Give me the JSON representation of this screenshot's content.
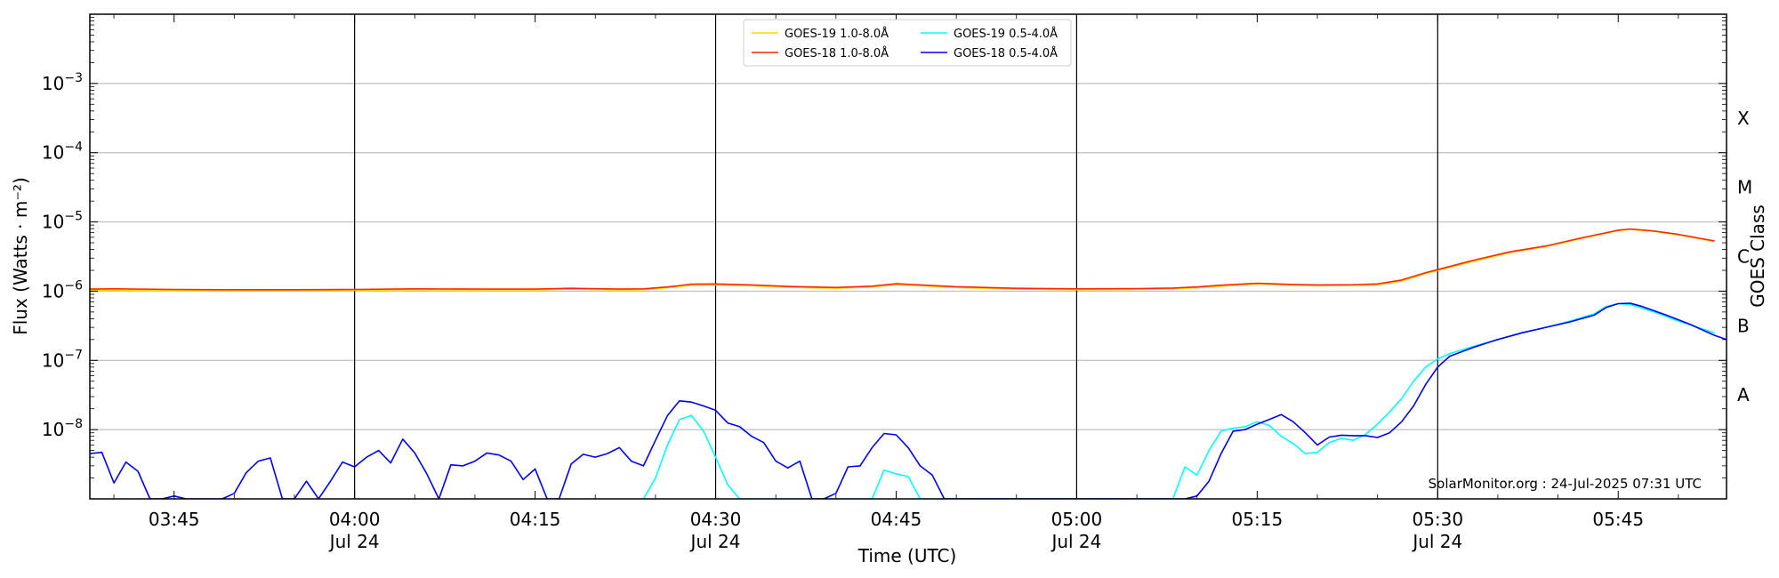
{
  "chart_data": {
    "type": "line",
    "xlabel": "Time (UTC)",
    "ylabel": "Flux (Watts · m⁻²)",
    "y2label": "GOES Class",
    "y_scale": "log",
    "ylim": [
      1e-09,
      0.01
    ],
    "xlim": [
      "03:38",
      "05:54"
    ],
    "grid": "horizontal",
    "legend_position": "top-center",
    "credit": "SolarMonitor.org : 24-Jul-2025 07:31 UTC",
    "x_ticks": [
      {
        "time": "03:45",
        "label": "03:45",
        "date": ""
      },
      {
        "time": "04:00",
        "label": "04:00",
        "date": "Jul 24"
      },
      {
        "time": "04:15",
        "label": "04:15",
        "date": ""
      },
      {
        "time": "04:30",
        "label": "04:30",
        "date": "Jul 24"
      },
      {
        "time": "04:45",
        "label": "04:45",
        "date": ""
      },
      {
        "time": "05:00",
        "label": "05:00",
        "date": "Jul 24"
      },
      {
        "time": "05:15",
        "label": "05:15",
        "date": ""
      },
      {
        "time": "05:30",
        "label": "05:30",
        "date": "Jul 24"
      },
      {
        "time": "05:45",
        "label": "05:45",
        "date": ""
      }
    ],
    "day_lines": [
      "04:00",
      "04:30",
      "05:00",
      "05:30"
    ],
    "y_ticks": [
      {
        "value": 1e-08,
        "mant": "10",
        "exp": "−8"
      },
      {
        "value": 1e-07,
        "mant": "10",
        "exp": "−7"
      },
      {
        "value": 1e-06,
        "mant": "10",
        "exp": "−6"
      },
      {
        "value": 1e-05,
        "mant": "10",
        "exp": "−5"
      },
      {
        "value": 0.0001,
        "mant": "10",
        "exp": "−4"
      },
      {
        "value": 0.001,
        "mant": "10",
        "exp": "−3"
      }
    ],
    "goes_classes": [
      {
        "label": "A",
        "value": 3.16e-08
      },
      {
        "label": "B",
        "value": 3.16e-07
      },
      {
        "label": "C",
        "value": 3.16e-06
      },
      {
        "label": "M",
        "value": 3.16e-05
      },
      {
        "label": "X",
        "value": 0.000316
      }
    ],
    "legend": [
      {
        "label": "GOES-19 1.0-8.0Å",
        "color": "#ffd700"
      },
      {
        "label": "GOES-19 0.5-4.0Å",
        "color": "#00ffff"
      },
      {
        "label": "GOES-18 1.0-8.0Å",
        "color": "#ff2a00"
      },
      {
        "label": "GOES-18 0.5-4.0Å",
        "color": "#0000ee"
      }
    ],
    "series": [
      {
        "name": "GOES-19 1.0-8.0Å",
        "color": "#ffd700",
        "points": [
          [
            "03:38",
            1.03e-06
          ],
          [
            "03:45",
            1.02e-06
          ],
          [
            "03:50",
            1e-06
          ],
          [
            "03:55",
            1.02e-06
          ],
          [
            "04:00",
            1.03e-06
          ],
          [
            "04:05",
            1.05e-06
          ],
          [
            "04:10",
            1.04e-06
          ],
          [
            "04:15",
            1.04e-06
          ],
          [
            "04:18",
            1.07e-06
          ],
          [
            "04:22",
            1.04e-06
          ],
          [
            "04:24",
            1.05e-06
          ],
          [
            "04:26",
            1.12e-06
          ],
          [
            "04:28",
            1.22e-06
          ],
          [
            "04:30",
            1.24e-06
          ],
          [
            "04:33",
            1.2e-06
          ],
          [
            "04:36",
            1.14e-06
          ],
          [
            "04:40",
            1.1e-06
          ],
          [
            "04:43",
            1.15e-06
          ],
          [
            "04:45",
            1.25e-06
          ],
          [
            "04:47",
            1.2e-06
          ],
          [
            "04:50",
            1.13e-06
          ],
          [
            "04:55",
            1.07e-06
          ],
          [
            "05:00",
            1.05e-06
          ],
          [
            "05:05",
            1.06e-06
          ],
          [
            "05:08",
            1.08e-06
          ],
          [
            "05:10",
            1.12e-06
          ],
          [
            "05:12",
            1.18e-06
          ],
          [
            "05:15",
            1.27e-06
          ],
          [
            "05:18",
            1.22e-06
          ],
          [
            "05:20",
            1.2e-06
          ],
          [
            "05:23",
            1.21e-06
          ],
          [
            "05:25",
            1.24e-06
          ],
          [
            "05:27",
            1.4e-06
          ],
          [
            "05:29",
            1.8e-06
          ],
          [
            "05:30",
            2e-06
          ],
          [
            "05:33",
            2.7e-06
          ],
          [
            "05:36",
            3.6e-06
          ],
          [
            "05:39",
            4.4e-06
          ],
          [
            "05:42",
            5.8e-06
          ],
          [
            "05:45",
            7.5e-06
          ],
          [
            "05:46",
            7.8e-06
          ],
          [
            "05:48",
            7.3e-06
          ],
          [
            "05:50",
            6.5e-06
          ],
          [
            "05:53",
            5.2e-06
          ]
        ]
      },
      {
        "name": "GOES-18 1.0-8.0Å",
        "color": "#ff2a00",
        "points": [
          [
            "03:38",
            1.07e-06
          ],
          [
            "03:40",
            1.08e-06
          ],
          [
            "03:45",
            1.06e-06
          ],
          [
            "03:50",
            1.05e-06
          ],
          [
            "03:55",
            1.05e-06
          ],
          [
            "04:00",
            1.06e-06
          ],
          [
            "04:05",
            1.08e-06
          ],
          [
            "04:10",
            1.07e-06
          ],
          [
            "04:15",
            1.07e-06
          ],
          [
            "04:18",
            1.1e-06
          ],
          [
            "04:22",
            1.07e-06
          ],
          [
            "04:24",
            1.08e-06
          ],
          [
            "04:26",
            1.15e-06
          ],
          [
            "04:28",
            1.26e-06
          ],
          [
            "04:30",
            1.27e-06
          ],
          [
            "04:33",
            1.23e-06
          ],
          [
            "04:36",
            1.17e-06
          ],
          [
            "04:40",
            1.13e-06
          ],
          [
            "04:43",
            1.18e-06
          ],
          [
            "04:45",
            1.28e-06
          ],
          [
            "04:47",
            1.23e-06
          ],
          [
            "04:50",
            1.16e-06
          ],
          [
            "04:55",
            1.1e-06
          ],
          [
            "05:00",
            1.08e-06
          ],
          [
            "05:05",
            1.09e-06
          ],
          [
            "05:08",
            1.11e-06
          ],
          [
            "05:10",
            1.15e-06
          ],
          [
            "05:12",
            1.22e-06
          ],
          [
            "05:15",
            1.3e-06
          ],
          [
            "05:18",
            1.25e-06
          ],
          [
            "05:20",
            1.23e-06
          ],
          [
            "05:23",
            1.24e-06
          ],
          [
            "05:25",
            1.27e-06
          ],
          [
            "05:27",
            1.45e-06
          ],
          [
            "05:29",
            1.85e-06
          ],
          [
            "05:30",
            2.05e-06
          ],
          [
            "05:33",
            2.8e-06
          ],
          [
            "05:36",
            3.7e-06
          ],
          [
            "05:39",
            4.5e-06
          ],
          [
            "05:42",
            5.9e-06
          ],
          [
            "05:45",
            7.6e-06
          ],
          [
            "05:46",
            7.9e-06
          ],
          [
            "05:48",
            7.4e-06
          ],
          [
            "05:50",
            6.6e-06
          ],
          [
            "05:53",
            5.3e-06
          ]
        ]
      },
      {
        "name": "GOES-19 0.5-4.0Å",
        "color": "#00ffff",
        "points": [
          [
            "04:24",
            1e-09
          ],
          [
            "04:25",
            2e-09
          ],
          [
            "04:26",
            6e-09
          ],
          [
            "04:27",
            1.4e-08
          ],
          [
            "04:28",
            1.6e-08
          ],
          [
            "04:29",
            9.5e-09
          ],
          [
            "04:30",
            4e-09
          ],
          [
            "04:31",
            1.6e-09
          ],
          [
            "04:32",
            1e-09
          ],
          [
            "04:43",
            1e-09
          ],
          [
            "04:44",
            2.6e-09
          ],
          [
            "04:45",
            2.3e-09
          ],
          [
            "04:46",
            2.1e-09
          ],
          [
            "04:47",
            1e-09
          ],
          [
            "05:08",
            1e-09
          ],
          [
            "05:09",
            2.9e-09
          ],
          [
            "05:10",
            2.2e-09
          ],
          [
            "05:11",
            5e-09
          ],
          [
            "05:12",
            9.5e-09
          ],
          [
            "05:13",
            1.05e-08
          ],
          [
            "05:14",
            1.1e-08
          ],
          [
            "05:15",
            1.3e-08
          ],
          [
            "05:16",
            1.15e-08
          ],
          [
            "05:17",
            8e-09
          ],
          [
            "05:18",
            6.3e-09
          ],
          [
            "05:19",
            4.5e-09
          ],
          [
            "05:20",
            4.7e-09
          ],
          [
            "05:21",
            6.5e-09
          ],
          [
            "05:22",
            7.5e-09
          ],
          [
            "05:23",
            7e-09
          ],
          [
            "05:24",
            8.5e-09
          ],
          [
            "05:25",
            1.2e-08
          ],
          [
            "05:26",
            1.8e-08
          ],
          [
            "05:27",
            2.8e-08
          ],
          [
            "05:28",
            5e-08
          ],
          [
            "05:29",
            8e-08
          ],
          [
            "05:30",
            1.05e-07
          ],
          [
            "05:31",
            1.25e-07
          ],
          [
            "05:33",
            1.6e-07
          ],
          [
            "05:35",
            2e-07
          ],
          [
            "05:37",
            2.5e-07
          ],
          [
            "05:39",
            3e-07
          ],
          [
            "05:41",
            3.7e-07
          ],
          [
            "05:43",
            4.7e-07
          ],
          [
            "05:44",
            6e-07
          ],
          [
            "05:45",
            6.6e-07
          ],
          [
            "05:46",
            6.4e-07
          ],
          [
            "05:48",
            5e-07
          ],
          [
            "05:50",
            3.7e-07
          ],
          [
            "05:53",
            2.5e-07
          ]
        ]
      },
      {
        "name": "GOES-18 0.5-4.0Å",
        "color": "#0000ee",
        "points": [
          [
            "03:38",
            4.5e-09
          ],
          [
            "03:39",
            4.7e-09
          ],
          [
            "03:40",
            1.7e-09
          ],
          [
            "03:41",
            3.4e-09
          ],
          [
            "03:42",
            2.5e-09
          ],
          [
            "03:43",
            1e-09
          ],
          [
            "03:44",
            1e-09
          ],
          [
            "03:45",
            1.1e-09
          ],
          [
            "03:46",
            1e-09
          ],
          [
            "03:47",
            1e-09
          ],
          [
            "03:48",
            1e-09
          ],
          [
            "03:49",
            1e-09
          ],
          [
            "03:50",
            1.2e-09
          ],
          [
            "03:51",
            2.4e-09
          ],
          [
            "03:52",
            3.5e-09
          ],
          [
            "03:53",
            3.9e-09
          ],
          [
            "03:54",
            1e-09
          ],
          [
            "03:55",
            1e-09
          ],
          [
            "03:56",
            1.8e-09
          ],
          [
            "03:57",
            1e-09
          ],
          [
            "03:58",
            1.8e-09
          ],
          [
            "03:59",
            3.4e-09
          ],
          [
            "04:00",
            2.9e-09
          ],
          [
            "04:01",
            4e-09
          ],
          [
            "04:02",
            5e-09
          ],
          [
            "04:03",
            3.3e-09
          ],
          [
            "04:04",
            7.3e-09
          ],
          [
            "04:05",
            4.6e-09
          ],
          [
            "04:06",
            2.3e-09
          ],
          [
            "04:07",
            1e-09
          ],
          [
            "04:08",
            3.1e-09
          ],
          [
            "04:09",
            3e-09
          ],
          [
            "04:10",
            3.5e-09
          ],
          [
            "04:11",
            4.6e-09
          ],
          [
            "04:12",
            4.3e-09
          ],
          [
            "04:13",
            3.5e-09
          ],
          [
            "04:14",
            1.9e-09
          ],
          [
            "04:15",
            2.7e-09
          ],
          [
            "04:16",
            1e-09
          ],
          [
            "04:17",
            1e-09
          ],
          [
            "04:18",
            3.2e-09
          ],
          [
            "04:19",
            4.4e-09
          ],
          [
            "04:20",
            4e-09
          ],
          [
            "04:21",
            4.5e-09
          ],
          [
            "04:22",
            5.5e-09
          ],
          [
            "04:23",
            3.5e-09
          ],
          [
            "04:24",
            3e-09
          ],
          [
            "04:25",
            7e-09
          ],
          [
            "04:26",
            1.6e-08
          ],
          [
            "04:27",
            2.6e-08
          ],
          [
            "04:28",
            2.5e-08
          ],
          [
            "04:29",
            2.2e-08
          ],
          [
            "04:30",
            1.9e-08
          ],
          [
            "04:31",
            1.25e-08
          ],
          [
            "04:32",
            1.1e-08
          ],
          [
            "04:33",
            8e-09
          ],
          [
            "04:34",
            6.5e-09
          ],
          [
            "04:35",
            3.5e-09
          ],
          [
            "04:36",
            2.8e-09
          ],
          [
            "04:37",
            3.5e-09
          ],
          [
            "04:38",
            1e-09
          ],
          [
            "04:39",
            1e-09
          ],
          [
            "04:40",
            1.2e-09
          ],
          [
            "04:41",
            2.9e-09
          ],
          [
            "04:42",
            3e-09
          ],
          [
            "04:43",
            5.5e-09
          ],
          [
            "04:44",
            8.8e-09
          ],
          [
            "04:45",
            8.4e-09
          ],
          [
            "04:46",
            5.5e-09
          ],
          [
            "04:47",
            3e-09
          ],
          [
            "04:48",
            2.2e-09
          ],
          [
            "04:49",
            1e-09
          ],
          [
            "05:08",
            1e-09
          ],
          [
            "05:09",
            1e-09
          ],
          [
            "05:10",
            1.1e-09
          ],
          [
            "05:11",
            1.8e-09
          ],
          [
            "05:12",
            4.5e-09
          ],
          [
            "05:13",
            9.5e-09
          ],
          [
            "05:14",
            1e-08
          ],
          [
            "05:15",
            1.2e-08
          ],
          [
            "05:16",
            1.4e-08
          ],
          [
            "05:17",
            1.65e-08
          ],
          [
            "05:18",
            1.3e-08
          ],
          [
            "05:19",
            9e-09
          ],
          [
            "05:20",
            6e-09
          ],
          [
            "05:21",
            7.8e-09
          ],
          [
            "05:22",
            8.3e-09
          ],
          [
            "05:23",
            8.2e-09
          ],
          [
            "05:24",
            8.2e-09
          ],
          [
            "05:25",
            7.7e-09
          ],
          [
            "05:26",
            9e-09
          ],
          [
            "05:27",
            1.3e-08
          ],
          [
            "05:28",
            2.2e-08
          ],
          [
            "05:29",
            4.5e-08
          ],
          [
            "05:30",
            8e-08
          ],
          [
            "05:31",
            1.15e-07
          ],
          [
            "05:33",
            1.55e-07
          ],
          [
            "05:35",
            2e-07
          ],
          [
            "05:37",
            2.5e-07
          ],
          [
            "05:39",
            3e-07
          ],
          [
            "05:41",
            3.6e-07
          ],
          [
            "05:43",
            4.5e-07
          ],
          [
            "05:44",
            5.8e-07
          ],
          [
            "05:45",
            6.6e-07
          ],
          [
            "05:46",
            6.7e-07
          ],
          [
            "05:47",
            6e-07
          ],
          [
            "05:49",
            4.5e-07
          ],
          [
            "05:51",
            3.3e-07
          ],
          [
            "05:53",
            2.3e-07
          ],
          [
            "05:54",
            2e-07
          ]
        ]
      }
    ]
  }
}
